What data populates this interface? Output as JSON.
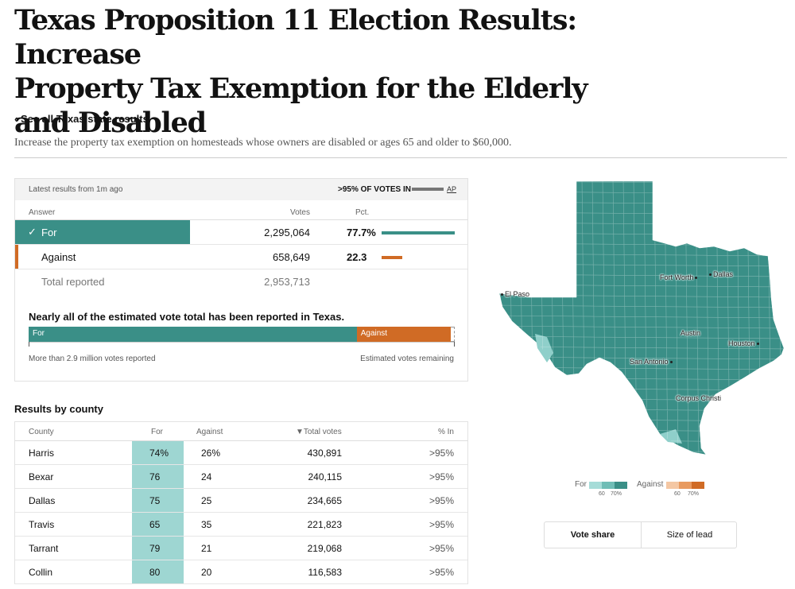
{
  "headline": {
    "line1": "Texas Proposition 11 Election Results: Increase",
    "line2": "Property Tax Exemption for the Elderly",
    "line3": "and Disabled"
  },
  "back_link": "‹ See all Texas state results",
  "dek": "Increase the property tax exemption on homesteads whose owners are disabled or ages 65 and older to $60,000.",
  "results": {
    "latest": "Latest results from 1m ago",
    "reporting": ">95% OF VOTES IN",
    "source": "AP",
    "columns": {
      "answer": "Answer",
      "votes": "Votes",
      "pct": "Pct."
    },
    "rows": [
      {
        "label": "For",
        "votes": "2,295,064",
        "pct": "77.7%",
        "pct_value": 77.7,
        "color": "#3a8f87"
      },
      {
        "label": "Against",
        "votes": "658,649",
        "pct": "22.3",
        "pct_value": 22.3,
        "color": "#d06b25"
      }
    ],
    "total_label": "Total reported",
    "total_votes": "2,953,713"
  },
  "estimate": {
    "title": "Nearly all of the estimated vote total has been reported in Texas.",
    "for_label": "For",
    "against_label": "Against",
    "for_share": 77,
    "against_share": 22,
    "remaining_share": 1,
    "left_note": "More than 2.9 million votes reported",
    "right_note": "Estimated votes remaining"
  },
  "county": {
    "title": "Results by county",
    "columns": {
      "county": "County",
      "for": "For",
      "against": "Against",
      "total": "▼Total votes",
      "pct_in": "% In"
    },
    "rows": [
      {
        "county": "Harris",
        "for": "74%",
        "against": "26%",
        "total": "430,891",
        "pct_in": ">95%"
      },
      {
        "county": "Bexar",
        "for": "76",
        "against": "24",
        "total": "240,115",
        "pct_in": ">95%"
      },
      {
        "county": "Dallas",
        "for": "75",
        "against": "25",
        "total": "234,665",
        "pct_in": ">95%"
      },
      {
        "county": "Travis",
        "for": "65",
        "against": "35",
        "total": "221,823",
        "pct_in": ">95%"
      },
      {
        "county": "Tarrant",
        "for": "79",
        "against": "21",
        "total": "219,068",
        "pct_in": ">95%"
      },
      {
        "county": "Collin",
        "for": "80",
        "against": "20",
        "total": "116,583",
        "pct_in": ">95%"
      }
    ]
  },
  "map": {
    "cities": [
      "El Paso",
      "Fort Worth",
      "Dallas",
      "Austin",
      "Houston",
      "San Antonio",
      "Corpus Christi"
    ],
    "fill_color": "#3a8f87",
    "light_color": "#8fcfca"
  },
  "legend": {
    "for_label": "For",
    "against_label": "Against",
    "tick_60": "60",
    "tick_70": "70%",
    "for_colors": [
      "#a6dcd8",
      "#6fbdb6",
      "#3a8f87"
    ],
    "against_colors": [
      "#f4c7a3",
      "#e89a5f",
      "#d06b25"
    ]
  },
  "toggle": {
    "vote_share": "Vote share",
    "size_of_lead": "Size of lead"
  }
}
